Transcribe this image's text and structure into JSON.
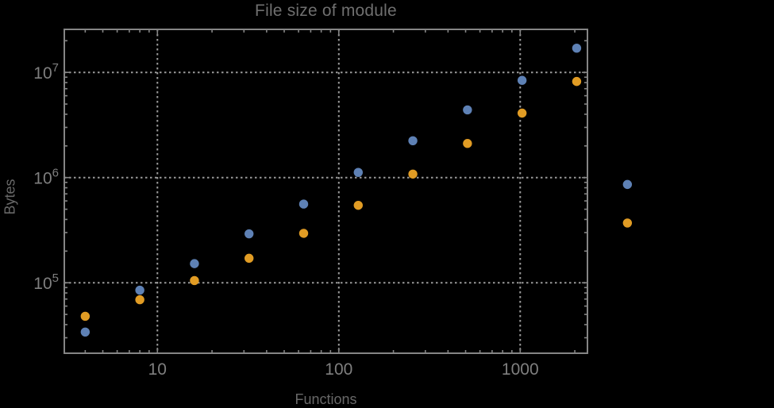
{
  "window": {
    "background": "#000000"
  },
  "chart_data": {
    "type": "scatter",
    "title": "File size of module",
    "xlabel": "Functions",
    "ylabel": "Bytes",
    "x_scale": "log",
    "y_scale": "log",
    "x_range_log10": [
      0.4867,
      3.3707
    ],
    "y_range_log10": [
      4.33,
      7.409
    ],
    "grid": "dotted-at-major-ticks",
    "legend": "none",
    "frame": true,
    "x_major_ticks": [
      {
        "value": 10,
        "label": "10"
      },
      {
        "value": 100,
        "label": "100"
      },
      {
        "value": 1000,
        "label": "1000"
      }
    ],
    "x_minor_ticks": [
      4,
      5,
      6,
      7,
      8,
      9,
      20,
      30,
      40,
      50,
      60,
      70,
      80,
      90,
      200,
      300,
      400,
      500,
      600,
      700,
      800,
      900,
      2000
    ],
    "y_major_ticks": [
      {
        "value": 100000,
        "base": "10",
        "exp": "5"
      },
      {
        "value": 1000000,
        "base": "10",
        "exp": "6"
      },
      {
        "value": 10000000,
        "base": "10",
        "exp": "7"
      }
    ],
    "y_minor_ticks": [
      30000,
      40000,
      50000,
      60000,
      70000,
      80000,
      90000,
      200000,
      300000,
      400000,
      500000,
      600000,
      700000,
      800000,
      900000,
      2000000,
      3000000,
      4000000,
      5000000,
      6000000,
      7000000,
      8000000,
      9000000,
      20000000
    ],
    "series": [
      {
        "name": "blue-series",
        "color": "#5e81b5",
        "points": [
          [
            4,
            34000
          ],
          [
            8,
            85000
          ],
          [
            16,
            152000
          ],
          [
            32,
            292000
          ],
          [
            64,
            560000
          ],
          [
            128,
            1120000
          ],
          [
            256,
            2240000
          ],
          [
            512,
            4400000
          ],
          [
            1024,
            8400000
          ],
          [
            2048,
            17000000
          ],
          [
            3900,
            860000
          ]
        ]
      },
      {
        "name": "orange-series",
        "color": "#e19c24",
        "points": [
          [
            4,
            48000
          ],
          [
            8,
            69000
          ],
          [
            16,
            105000
          ],
          [
            32,
            171000
          ],
          [
            64,
            295000
          ],
          [
            128,
            545000
          ],
          [
            256,
            1080000
          ],
          [
            512,
            2110000
          ],
          [
            1024,
            4100000
          ],
          [
            2048,
            8200000
          ],
          [
            3900,
            370000
          ]
        ]
      }
    ],
    "colors": {
      "background": "#000000",
      "frame": "#858585",
      "grid": "#9a9a9a",
      "tick_text": "#7f7f7f",
      "title_text": "#6f6f6f",
      "axis_label_text": "#686868"
    }
  }
}
